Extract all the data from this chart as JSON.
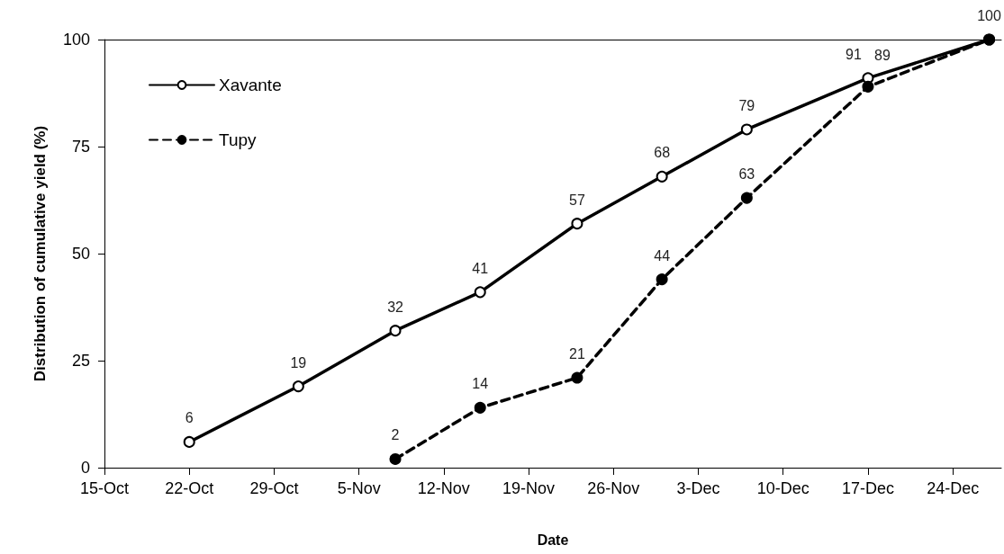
{
  "chart_data": {
    "type": "line",
    "xlabel": "Date",
    "ylabel": "Distribution of cumulative yield (%)",
    "xlim": [
      "--10-15",
      "--12-28"
    ],
    "xticks": [
      {
        "value": "--10-15",
        "label": "15-Oct"
      },
      {
        "value": "--10-22",
        "label": "22-Oct"
      },
      {
        "value": "--10-29",
        "label": "29-Oct"
      },
      {
        "value": "--11-05",
        "label": "5-Nov"
      },
      {
        "value": "--11-12",
        "label": "12-Nov"
      },
      {
        "value": "--11-19",
        "label": "19-Nov"
      },
      {
        "value": "--11-26",
        "label": "26-Nov"
      },
      {
        "value": "--12-03",
        "label": "3-Dec"
      },
      {
        "value": "--12-10",
        "label": "10-Dec"
      },
      {
        "value": "--12-17",
        "label": "17-Dec"
      },
      {
        "value": "--12-24",
        "label": "24-Dec"
      }
    ],
    "ylim": [
      0,
      100
    ],
    "yticks": [
      0,
      25,
      50,
      75,
      100
    ],
    "grid": false,
    "legend": "top left",
    "marker": "circle",
    "series": [
      {
        "name": "Xavante",
        "color": "#000000",
        "line_style": "solid",
        "x": [
          "--10-22",
          "--10-31",
          "--11-08",
          "--11-15",
          "--11-23",
          "--11-30",
          "--12-07",
          "--12-17",
          "--12-27"
        ],
        "values": [
          6,
          19,
          32,
          41,
          57,
          68,
          79,
          91,
          100
        ],
        "value_labels": [
          "6",
          "19",
          "32",
          "41",
          "57",
          "68",
          "79",
          "91",
          null
        ]
      },
      {
        "name": "Tupy",
        "color": "#000000",
        "line_style": "dashed",
        "x": [
          "--11-08",
          "--11-15",
          "--11-23",
          "--11-30",
          "--12-07",
          "--12-17",
          "--12-27"
        ],
        "values": [
          2,
          14,
          21,
          44,
          63,
          89,
          100
        ],
        "value_labels": [
          "2",
          "14",
          "21",
          "44",
          "63",
          "89",
          "100"
        ]
      }
    ]
  }
}
